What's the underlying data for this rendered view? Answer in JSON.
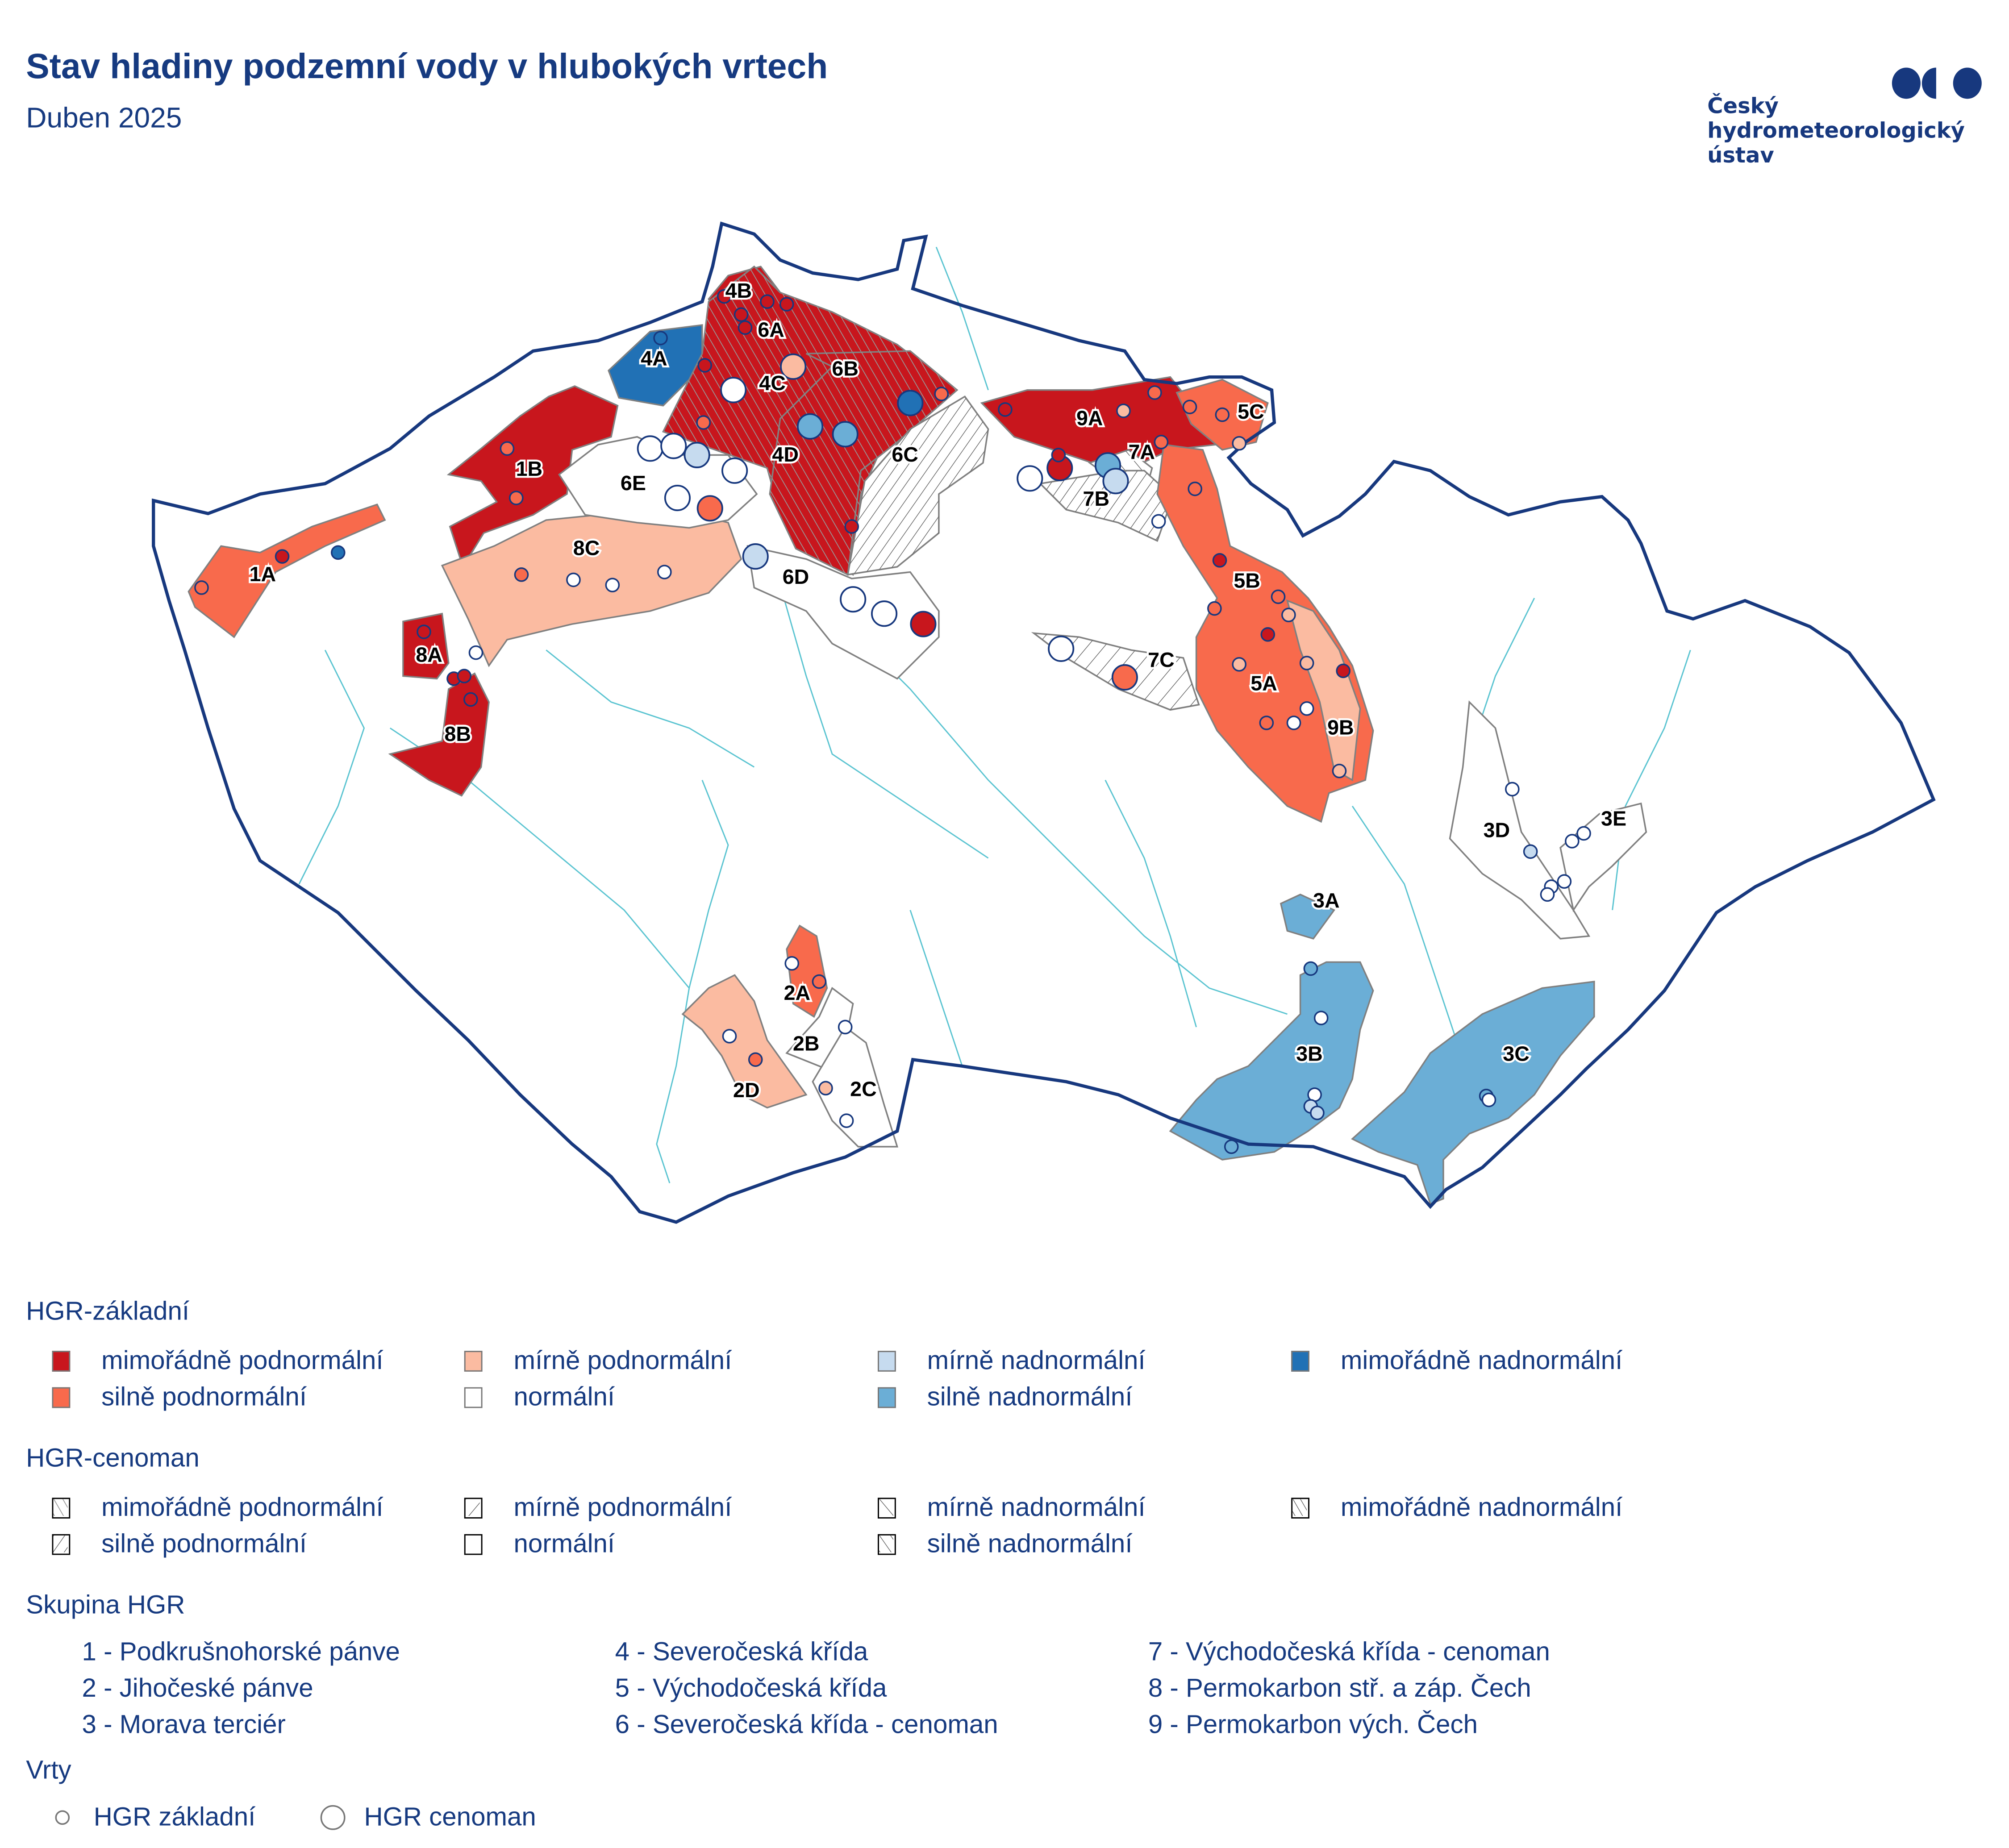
{
  "title": "Stav hladiny podzemní vody v hlubokých vrtech",
  "subtitle": "Duben 2025",
  "logo": {
    "text_lines": [
      "Český",
      "hydrometeorologický",
      "ústav"
    ],
    "color": "#17387e"
  },
  "status_colors": {
    "mimoradne_podnormalni": "#c8161d",
    "silne_podnormalni": "#f86a4c",
    "mirne_podnormalni": "#fbbba1",
    "normalni": "#ffffff",
    "mirne_nadnormalni": "#c6dbef",
    "silne_nadnormalni": "#6baed6",
    "mimoradne_nadnormalni": "#2171b5"
  },
  "map_colors": {
    "border": "#17387e",
    "rivers": "#5bc4d1",
    "region_outline": "#808080"
  },
  "legend": {
    "zakladni": {
      "heading": "HGR-základní",
      "items": [
        {
          "status": "mimoradne_podnormalni",
          "label": "mimořádně podnormální"
        },
        {
          "status": "silne_podnormalni",
          "label": "silně podnormální"
        },
        {
          "status": "mirne_podnormalni",
          "label": "mírně podnormální"
        },
        {
          "status": "normalni",
          "label": "normální"
        },
        {
          "status": "mirne_nadnormalni",
          "label": "mírně nadnormální"
        },
        {
          "status": "silne_nadnormalni",
          "label": "silně nadnormální"
        },
        {
          "status": "mimoradne_nadnormalni",
          "label": "mimořádně nadnormální"
        }
      ]
    },
    "cenoman": {
      "heading": "HGR-cenoman",
      "items": [
        {
          "status": "mimoradne_podnormalni",
          "label": "mimořádně podnormální"
        },
        {
          "status": "silne_podnormalni",
          "label": "silně podnormální"
        },
        {
          "status": "mirne_podnormalni",
          "label": "mírně podnormální"
        },
        {
          "status": "normalni",
          "label": "normální"
        },
        {
          "status": "mirne_nadnormalni",
          "label": "mírně nadnormální"
        },
        {
          "status": "silne_nadnormalni",
          "label": "silně nadnormální"
        },
        {
          "status": "mimoradne_nadnormalni",
          "label": "mimořádně nadnormální"
        }
      ]
    },
    "groups": {
      "heading": "Skupina HGR",
      "items": [
        "1 - Podkrušnohorské pánve",
        "2 - Jihočeské pánve",
        "3 - Morava terciér",
        "4 - Severočeská křída",
        "5 - Východočeská křída",
        "6 - Severočeská křída - cenoman",
        "7 - Východočeská křída - cenoman",
        "8 - Permokarbon stř. a záp. Čech",
        "9 - Permokarbon vých. Čech"
      ]
    },
    "wells": {
      "heading": "Vrty",
      "small_label": "HGR základní",
      "large_label": "HGR cenoman"
    }
  },
  "regions": [
    {
      "label": "1A",
      "type": "zakladni",
      "status": "silne_podnormalni"
    },
    {
      "label": "1B",
      "type": "zakladni",
      "status": "mimoradne_podnormalni"
    },
    {
      "label": "8C",
      "type": "zakladni",
      "status": "mirne_podnormalni"
    },
    {
      "label": "8A",
      "type": "zakladni",
      "status": "mimoradne_podnormalni"
    },
    {
      "label": "8B",
      "type": "zakladni",
      "status": "mimoradne_podnormalni"
    },
    {
      "label": "6E",
      "type": "cenoman",
      "status": "normalni"
    },
    {
      "label": "6D",
      "type": "cenoman",
      "status": "normalni"
    },
    {
      "label": "4A",
      "type": "zakladni",
      "status": "mimoradne_nadnormalni"
    },
    {
      "label": "4B",
      "type": "zakladni",
      "status": "mimoradne_podnormalni"
    },
    {
      "label": "6A",
      "type": "cenoman",
      "status": "mimoradne_podnormalni"
    },
    {
      "label": "4C",
      "type": "zakladni",
      "status": "mimoradne_podnormalni"
    },
    {
      "label": "4D",
      "type": "zakladni",
      "status": "mimoradne_podnormalni"
    },
    {
      "label": "6B",
      "type": "cenoman",
      "status": "mimoradne_podnormalni"
    },
    {
      "label": "6C",
      "type": "cenoman",
      "status": "silne_podnormalni"
    },
    {
      "label": "9A",
      "type": "zakladni",
      "status": "mimoradne_podnormalni"
    },
    {
      "label": "5C",
      "type": "zakladni",
      "status": "silne_podnormalni"
    },
    {
      "label": "7A",
      "type": "cenoman",
      "status": "mirne_nadnormalni"
    },
    {
      "label": "7B",
      "type": "cenoman",
      "status": "silne_podnormalni"
    },
    {
      "label": "5B",
      "type": "zakladni",
      "status": "silne_podnormalni"
    },
    {
      "label": "5A",
      "type": "zakladni",
      "status": "silne_podnormalni"
    },
    {
      "label": "9B",
      "type": "zakladni",
      "status": "mirne_podnormalni"
    },
    {
      "label": "7C",
      "type": "cenoman",
      "status": "mirne_podnormalni"
    },
    {
      "label": "3A",
      "type": "zakladni",
      "status": "silne_nadnormalni"
    },
    {
      "label": "3B",
      "type": "zakladni",
      "status": "silne_nadnormalni"
    },
    {
      "label": "3C",
      "type": "zakladni",
      "status": "silne_nadnormalni"
    },
    {
      "label": "3D",
      "type": "zakladni",
      "status": "normalni"
    },
    {
      "label": "3E",
      "type": "zakladni",
      "status": "normalni"
    },
    {
      "label": "2A",
      "type": "zakladni",
      "status": "silne_podnormalni"
    },
    {
      "label": "2B",
      "type": "zakladni",
      "status": "normalni"
    },
    {
      "label": "2C",
      "type": "zakladni",
      "status": "normalni"
    },
    {
      "label": "2D",
      "type": "zakladni",
      "status": "mirne_podnormalni"
    }
  ],
  "wells": [
    "silne_podnormalni",
    "mimoradne_podnormalni",
    "mimoradne_nadnormalni",
    "silne_podnormalni",
    "silne_podnormalni",
    "mimoradne_podnormalni",
    "mimoradne_podnormalni",
    "mimoradne_podnormalni",
    "mimoradne_podnormalni",
    "normalni",
    "silne_podnormalni",
    "normalni",
    "normalni",
    "normalni",
    "mimoradne_nadnormalni",
    "mimoradne_podnormalni",
    "mimoradne_podnormalni",
    "mimoradne_podnormalni",
    "mimoradne_podnormalni",
    "mimoradne_podnormalni",
    "mimoradne_podnormalni",
    "silne_podnormalni",
    "mimoradne_podnormalni",
    "silne_podnormalni",
    "mimoradne_podnormalni",
    "mimoradne_podnormalni",
    "mirne_podnormalni",
    "silne_podnormalni",
    "silne_podnormalni",
    "silne_podnormalni",
    "silne_podnormalni",
    "mirne_podnormalni",
    "silne_podnormalni",
    "normalni",
    "mimoradne_podnormalni",
    "silne_podnormalni",
    "silne_podnormalni",
    "mirne_podnormalni",
    "mimoradne_podnormalni",
    "mirne_podnormalni",
    "mimoradne_podnormalni",
    "mirne_podnormalni",
    "silne_podnormalni",
    "normalni",
    "normalni",
    "mirne_podnormalni",
    "normalni",
    "mirne_nadnormalni",
    "normalni",
    "normalni",
    "normalni",
    "normalni",
    "normalni",
    "silne_nadnormalni",
    "normalni",
    "normalni",
    "mirne_nadnormalni",
    "mirne_nadnormalni",
    "silne_nadnormalni",
    "silne_nadnormalni",
    "normalni",
    "normalni",
    "silne_podnormalni",
    "silne_podnormalni",
    "normalni",
    "mirne_podnormalni",
    "normalni",
    "normalni"
  ],
  "cenoman_wells": [
    "normalni",
    "mirne_podnormalni",
    "silne_nadnormalni",
    "silne_nadnormalni",
    "mimoradne_nadnormalni",
    "normalni",
    "normalni",
    "mirne_nadnormalni",
    "normalni",
    "normalni",
    "silne_podnormalni",
    "mirne_nadnormalni",
    "normalni",
    "normalni",
    "mimoradne_podnormalni",
    "mimoradne_podnormalni",
    "normalni",
    "silne_nadnormalni",
    "mirne_nadnormalni",
    "normalni",
    "silne_podnormalni"
  ]
}
